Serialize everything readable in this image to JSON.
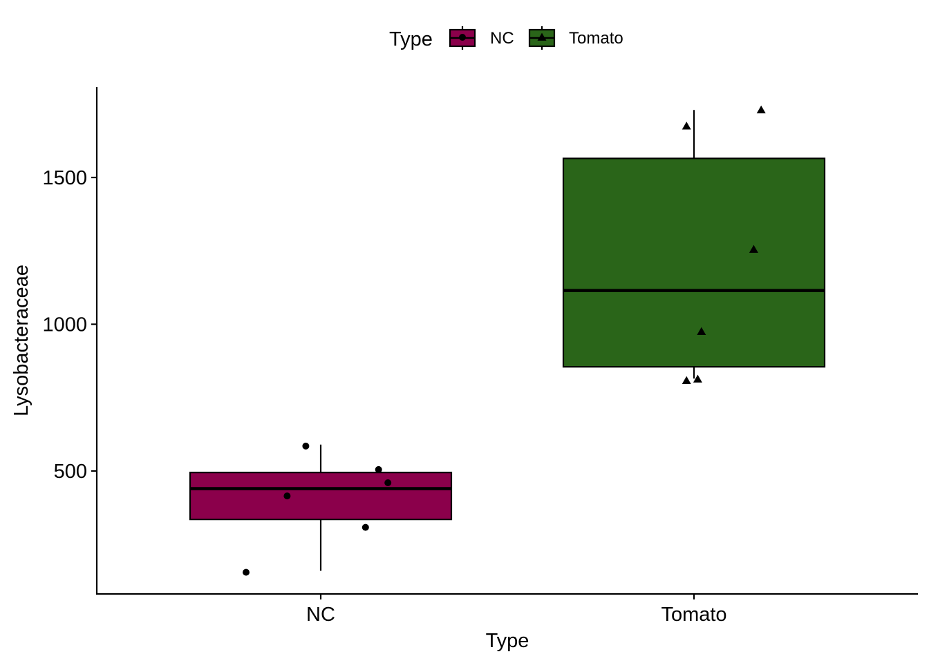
{
  "chart_data": {
    "type": "box",
    "xlabel": "Type",
    "ylabel": "Lysobacteraceae",
    "categories": [
      "NC",
      "Tomato"
    ],
    "yticks": [
      500,
      1000,
      1500
    ],
    "ylim": [
      90,
      1820
    ],
    "legend": {
      "title": "Type",
      "position": "top",
      "entries": [
        {
          "label": "NC",
          "marker": "circle",
          "color": "#8B004B"
        },
        {
          "label": "Tomato",
          "marker": "triangle",
          "color": "#2A6519"
        }
      ]
    },
    "boxes": [
      {
        "category": "NC",
        "color": "#8B004B",
        "marker": "circle",
        "whisker_low": 160,
        "q1": 335,
        "median": 440,
        "q3": 495,
        "whisker_high": 590,
        "points": [
          {
            "x": 0.8,
            "y": 155
          },
          {
            "x": 0.91,
            "y": 415
          },
          {
            "x": 0.96,
            "y": 585
          },
          {
            "x": 1.12,
            "y": 308
          },
          {
            "x": 1.155,
            "y": 505
          },
          {
            "x": 1.18,
            "y": 460
          }
        ]
      },
      {
        "category": "Tomato",
        "color": "#2A6519",
        "marker": "triangle",
        "whisker_low": 815,
        "q1": 855,
        "median": 1115,
        "q3": 1565,
        "whisker_high": 1730,
        "points": [
          {
            "x": 1.98,
            "y": 1675
          },
          {
            "x": 2.18,
            "y": 1730
          },
          {
            "x": 2.16,
            "y": 1255
          },
          {
            "x": 2.02,
            "y": 975
          },
          {
            "x": 1.98,
            "y": 808
          },
          {
            "x": 2.01,
            "y": 813
          }
        ]
      }
    ]
  }
}
